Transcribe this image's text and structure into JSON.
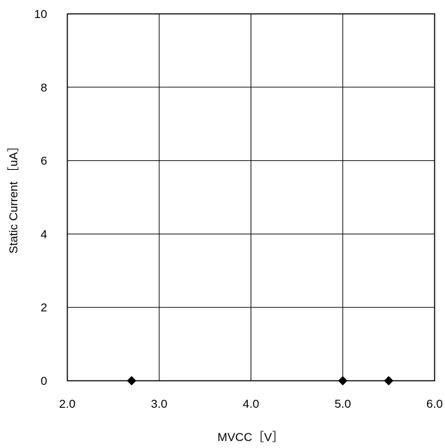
{
  "chart_data": {
    "type": "scatter",
    "xlabel": "MVCC［V］",
    "ylabel": "Static Current ［uA］",
    "xlim": [
      2.0,
      6.0
    ],
    "ylim": [
      0,
      10
    ],
    "x_ticks": [
      "2.0",
      "3.0",
      "4.0",
      "5.0",
      "6.0"
    ],
    "y_ticks": [
      "0",
      "2",
      "4",
      "6",
      "8",
      "10"
    ],
    "grid": true,
    "series": [
      {
        "marker": "diamond",
        "color": "#000000",
        "points": [
          {
            "x": 2.7,
            "y": 0
          },
          {
            "x": 5.0,
            "y": 0
          },
          {
            "x": 5.5,
            "y": 0
          }
        ]
      }
    ]
  }
}
